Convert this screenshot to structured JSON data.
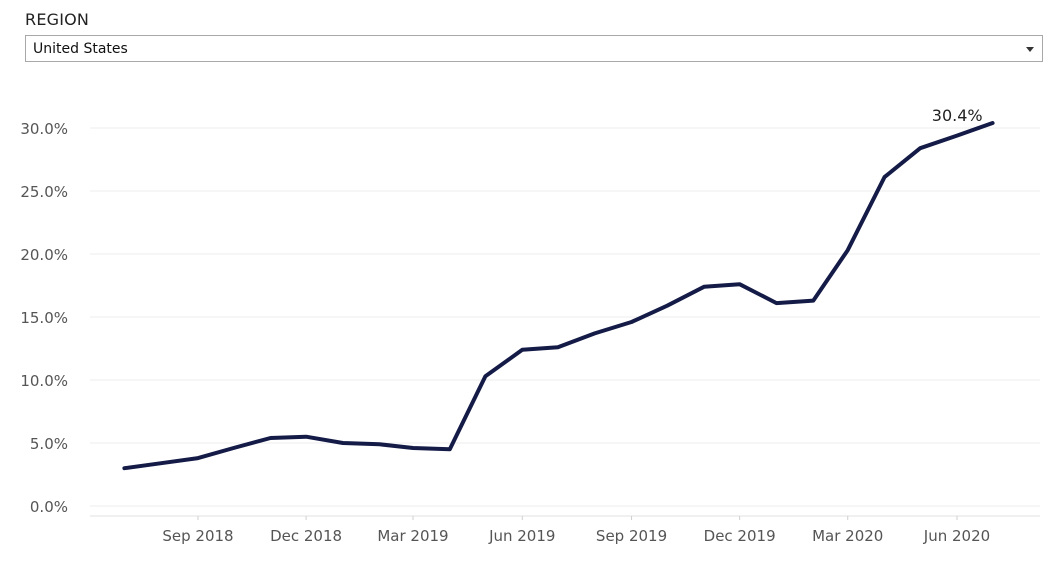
{
  "filter": {
    "label": "REGION",
    "selected": "United States"
  },
  "chart_data": {
    "type": "line",
    "title": "",
    "xlabel": "",
    "ylabel": "",
    "x": [
      "2018-07-01",
      "2018-08-01",
      "2018-09-01",
      "2018-10-01",
      "2018-11-01",
      "2018-12-01",
      "2019-01-01",
      "2019-02-01",
      "2019-03-01",
      "2019-04-01",
      "2019-05-01",
      "2019-06-01",
      "2019-07-01",
      "2019-08-01",
      "2019-09-01",
      "2019-10-01",
      "2019-11-01",
      "2019-12-01",
      "2020-01-01",
      "2020-02-01",
      "2020-03-01",
      "2020-04-01",
      "2020-05-01",
      "2020-06-01",
      "2020-07-01"
    ],
    "series": [
      {
        "values": [
          3.0,
          3.4,
          3.8,
          4.6,
          5.4,
          5.5,
          5.0,
          4.9,
          4.6,
          4.5,
          10.3,
          12.4,
          12.6,
          13.7,
          14.6,
          15.9,
          17.4,
          17.6,
          16.1,
          16.3,
          20.3,
          26.1,
          28.4,
          29.4,
          30.4
        ],
        "color": "#141b47"
      }
    ],
    "data_labels": [
      {
        "x": "2020-07-01",
        "text": "30.4%"
      }
    ],
    "yticks": [
      0,
      5,
      10,
      15,
      20,
      25,
      30
    ],
    "ytick_labels": [
      "0.0%",
      "5.0%",
      "10.0%",
      "15.0%",
      "20.0%",
      "25.0%",
      "30.0%"
    ],
    "xticks": [
      {
        "x": "2018-09-01",
        "label": "Sep 2018"
      },
      {
        "x": "2018-12-01",
        "label": "Dec 2018"
      },
      {
        "x": "2019-03-01",
        "label": "Mar 2019"
      },
      {
        "x": "2019-06-01",
        "label": "Jun 2019"
      },
      {
        "x": "2019-09-01",
        "label": "Sep 2019"
      },
      {
        "x": "2019-12-01",
        "label": "Dec 2019"
      },
      {
        "x": "2020-03-01",
        "label": "Mar 2020"
      },
      {
        "x": "2020-06-01",
        "label": "Jun 2020"
      }
    ],
    "ylim": [
      0,
      30
    ],
    "grid": true,
    "legend": "none"
  }
}
